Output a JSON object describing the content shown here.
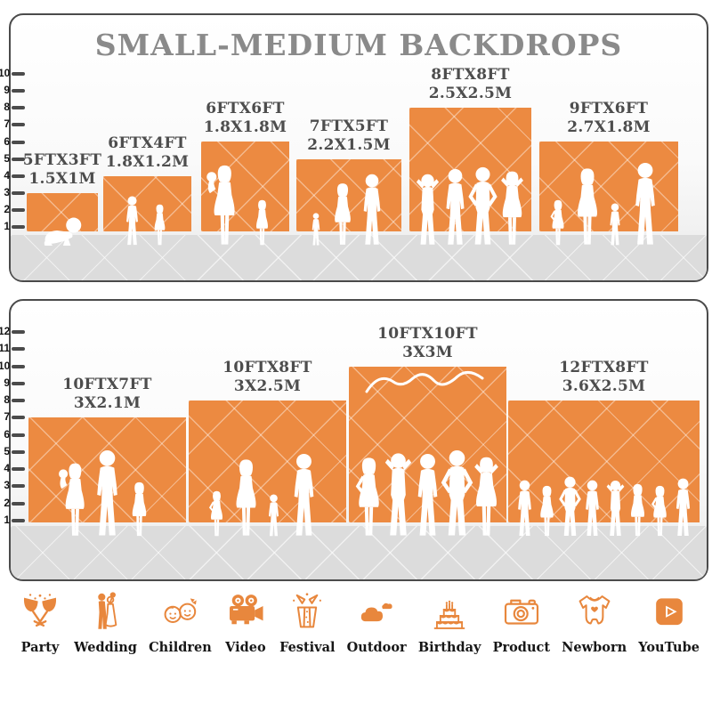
{
  "title": "SMALL-MEDIUM BACKDROPS",
  "accent_color": "#EC8A41",
  "icon_color": "#E8873D",
  "panels": [
    {
      "name": "small-medium-backdrops",
      "ruler_ticks": [
        "1",
        "2",
        "3",
        "4",
        "5",
        "6",
        "7",
        "8",
        "9",
        "10"
      ],
      "backdrops": [
        {
          "size_ft": "5FTX3FT",
          "size_m": "1.5X1M",
          "width_ft": 5,
          "height_ft": 3,
          "figures": "crawling-baby"
        },
        {
          "size_ft": "6FTX4FT",
          "size_m": "1.8X1.2M",
          "width_ft": 6,
          "height_ft": 4,
          "figures": "two-children"
        },
        {
          "size_ft": "6FTX6FT",
          "size_m": "1.8X1.8M",
          "width_ft": 6,
          "height_ft": 6,
          "figures": "mother-with-baby-and-girl"
        },
        {
          "size_ft": "7FTX5FT",
          "size_m": "2.2X1.5M",
          "width_ft": 7,
          "height_ft": 5,
          "figures": "toddler-and-parents"
        },
        {
          "size_ft": "8FTX8FT",
          "size_m": "2.5X2.5M",
          "width_ft": 8,
          "height_ft": 8,
          "figures": "four-adults-posing"
        },
        {
          "size_ft": "9FTX6FT",
          "size_m": "2.7X1.8M",
          "width_ft": 9,
          "height_ft": 6,
          "figures": "family-of-four"
        }
      ]
    },
    {
      "name": "medium-large-backdrops",
      "ruler_ticks": [
        "1",
        "2",
        "3",
        "4",
        "5",
        "6",
        "7",
        "8",
        "9",
        "10",
        "11",
        "12"
      ],
      "backdrops": [
        {
          "size_ft": "10FTX7FT",
          "size_m": "3X2.1M",
          "width_ft": 10,
          "height_ft": 7,
          "figures": "family-of-three"
        },
        {
          "size_ft": "10FTX8FT",
          "size_m": "3X2.5M",
          "width_ft": 10,
          "height_ft": 8,
          "figures": "family-of-four"
        },
        {
          "size_ft": "10FTX10FT",
          "size_m": "3X3M",
          "width_ft": 10,
          "height_ft": 10,
          "figures": "group-of-five"
        },
        {
          "size_ft": "12FTX8FT",
          "size_m": "3.6X2.5M",
          "width_ft": 12,
          "height_ft": 8,
          "figures": "crowd-of-eight"
        }
      ]
    }
  ],
  "categories": [
    {
      "label": "Party",
      "icon": "party-icon"
    },
    {
      "label": "Wedding",
      "icon": "wedding-icon"
    },
    {
      "label": "Children",
      "icon": "children-icon"
    },
    {
      "label": "Video",
      "icon": "video-icon"
    },
    {
      "label": "Festival",
      "icon": "festival-icon"
    },
    {
      "label": "Outdoor",
      "icon": "outdoor-icon"
    },
    {
      "label": "Birthday",
      "icon": "birthday-icon"
    },
    {
      "label": "Product",
      "icon": "product-icon"
    },
    {
      "label": "Newborn",
      "icon": "newborn-icon"
    },
    {
      "label": "YouTube",
      "icon": "youtube-icon"
    }
  ]
}
